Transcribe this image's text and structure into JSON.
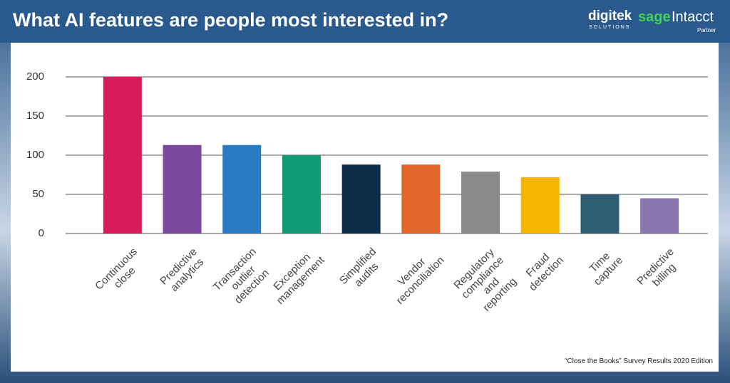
{
  "chart_data": {
    "type": "bar",
    "title": "What AI features are people most interested in?",
    "categories": [
      "Continuous close",
      "Predictive analytics",
      "Transaction outlier\ndetection",
      "Exception management",
      "Simplified audits",
      "Vendor reconciliation",
      "Regulatory compliance\nand reporting",
      "Fraud detection",
      "Time capture",
      "Predictive billing"
    ],
    "values": [
      200,
      113,
      113,
      100,
      88,
      88,
      79,
      72,
      50,
      45
    ],
    "colors": [
      "#d81b5c",
      "#7b4a9e",
      "#2a7bc2",
      "#0f9a74",
      "#0b2d48",
      "#e0662a",
      "#898989",
      "#f5b400",
      "#2f5d73",
      "#8c76b1"
    ],
    "ylim": [
      0,
      200
    ],
    "yticks": [
      0,
      50,
      100,
      150,
      200
    ],
    "grid": true,
    "source": "“Close the Books” Survey Results 2020 Edition"
  },
  "logos": {
    "digitek": "digitek",
    "digitek_sub": "SOLUTIONS",
    "sage": "sage",
    "intacct": "Intacct",
    "partner": "Partner"
  }
}
